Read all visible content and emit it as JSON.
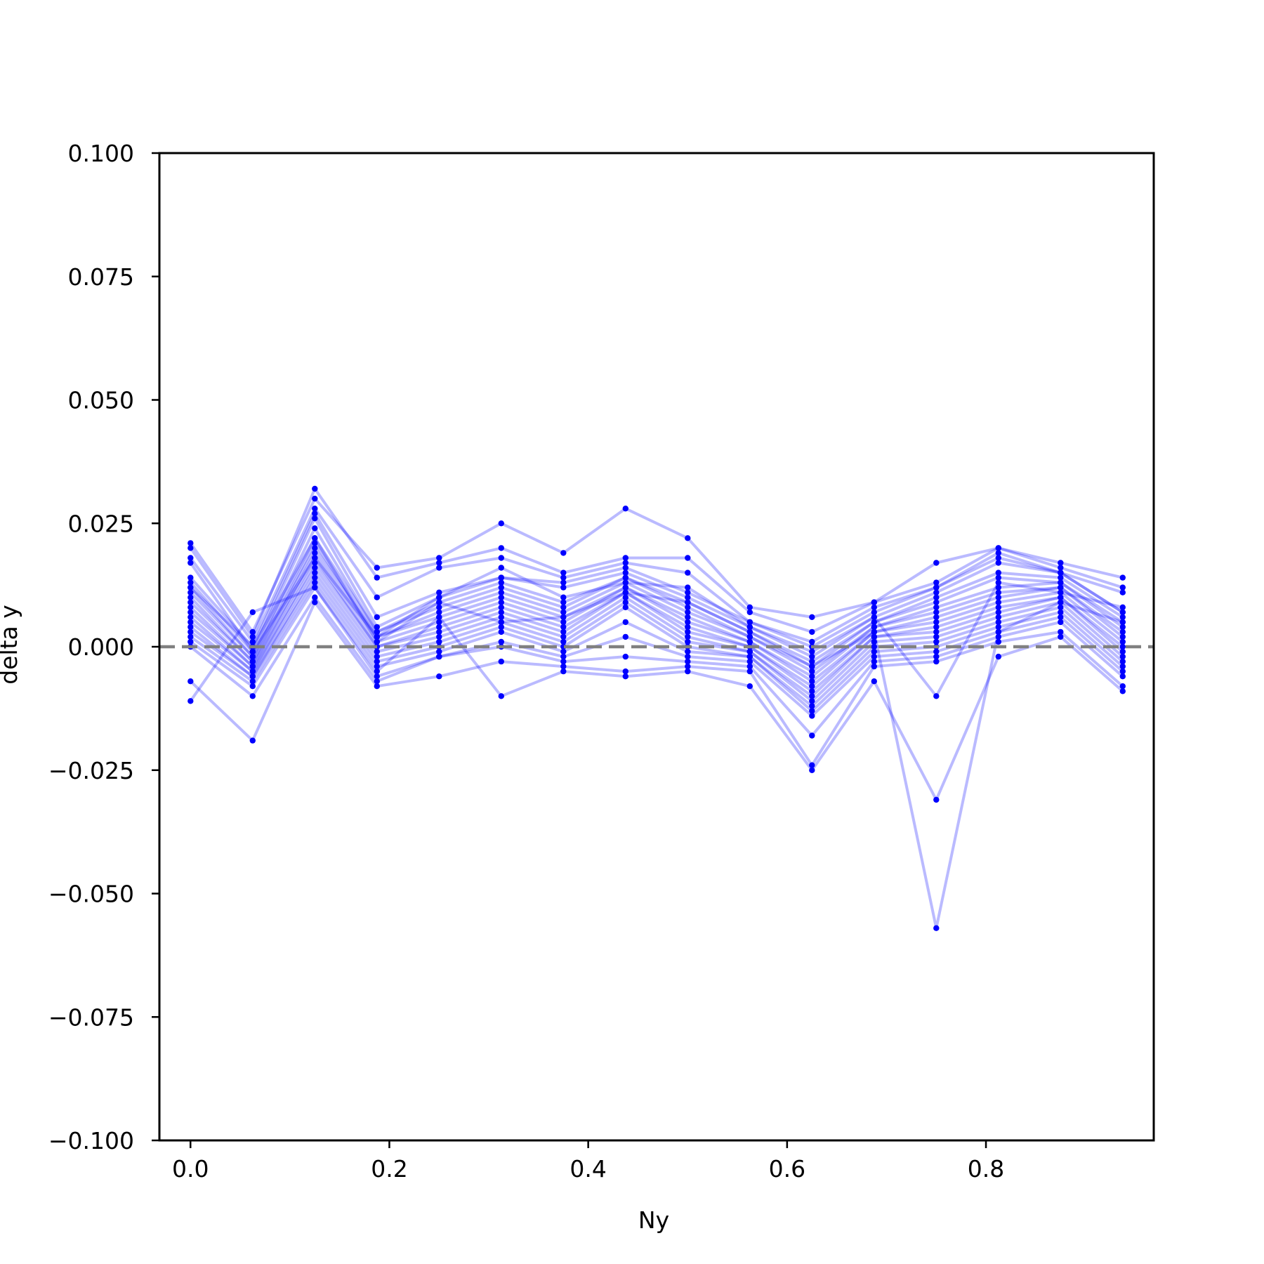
{
  "chart_data": {
    "type": "line",
    "title": "",
    "xlabel": "Ny",
    "ylabel": "delta y",
    "xlim": [
      -0.03125,
      0.96875
    ],
    "ylim": [
      -0.1,
      0.1
    ],
    "xticks": [
      0.0,
      0.2,
      0.4,
      0.6,
      0.8
    ],
    "xtick_labels": [
      "0.0",
      "0.2",
      "0.4",
      "0.6",
      "0.8"
    ],
    "yticks": [
      0.1,
      0.075,
      0.05,
      0.025,
      0.0,
      -0.025,
      -0.05,
      -0.075,
      -0.1
    ],
    "ytick_labels": [
      "0.100",
      "0.075",
      "0.050",
      "0.025",
      "0.000",
      "−0.025",
      "−0.050",
      "−0.075",
      "−0.100"
    ],
    "x": [
      0.0,
      0.0625,
      0.125,
      0.1875,
      0.25,
      0.3125,
      0.375,
      0.4375,
      0.5,
      0.5625,
      0.625,
      0.6875,
      0.75,
      0.8125,
      0.875,
      0.9375
    ],
    "reference_line": {
      "y": 0.0,
      "style": "dashed",
      "color": "#808080"
    },
    "grid": false,
    "legend": "none",
    "series_color": "#0000ff",
    "series": [
      {
        "values": [
          0.021,
          0.003,
          0.03,
          0.016,
          0.018,
          0.025,
          0.019,
          0.028,
          0.022,
          0.008,
          0.006,
          0.009,
          0.017,
          0.02,
          0.017,
          0.014
        ]
      },
      {
        "values": [
          0.02,
          0.002,
          0.032,
          0.014,
          0.017,
          0.02,
          0.015,
          0.018,
          0.018,
          0.007,
          0.003,
          0.009,
          0.013,
          0.02,
          0.016,
          0.012
        ]
      },
      {
        "values": [
          0.018,
          0.001,
          0.028,
          0.01,
          0.016,
          0.018,
          0.014,
          0.017,
          0.015,
          0.005,
          0.001,
          0.008,
          0.012,
          0.019,
          0.015,
          0.011
        ]
      },
      {
        "values": [
          0.014,
          0.0,
          0.027,
          0.006,
          0.011,
          0.014,
          0.013,
          0.016,
          0.011,
          0.005,
          0.0,
          0.007,
          0.012,
          0.018,
          0.015,
          0.007
        ]
      },
      {
        "values": [
          0.013,
          -0.001,
          0.026,
          0.004,
          0.01,
          0.014,
          0.012,
          0.015,
          0.01,
          0.004,
          -0.002,
          0.006,
          0.011,
          0.017,
          0.015,
          0.007
        ]
      },
      {
        "values": [
          0.012,
          -0.002,
          0.024,
          0.003,
          0.009,
          0.013,
          0.009,
          0.014,
          0.009,
          0.003,
          -0.003,
          0.005,
          0.01,
          0.015,
          0.014,
          0.006
        ]
      },
      {
        "values": [
          0.011,
          -0.002,
          0.022,
          0.003,
          0.008,
          0.012,
          0.008,
          0.014,
          0.008,
          0.002,
          -0.004,
          0.005,
          0.009,
          0.014,
          0.013,
          0.005
        ]
      },
      {
        "values": [
          0.01,
          -0.003,
          0.021,
          0.002,
          0.007,
          0.011,
          0.007,
          0.013,
          0.007,
          0.002,
          -0.005,
          0.004,
          0.008,
          0.012,
          0.013,
          0.004
        ]
      },
      {
        "values": [
          0.009,
          -0.003,
          0.02,
          0.002,
          0.006,
          0.01,
          0.006,
          0.012,
          0.006,
          0.001,
          -0.006,
          0.004,
          0.007,
          0.011,
          0.012,
          0.003
        ]
      },
      {
        "values": [
          0.008,
          -0.004,
          0.019,
          0.001,
          0.005,
          0.009,
          0.005,
          0.012,
          0.005,
          0.001,
          -0.007,
          0.003,
          0.006,
          0.01,
          0.012,
          0.002
        ]
      },
      {
        "values": [
          0.007,
          -0.004,
          0.018,
          0.0,
          0.004,
          0.008,
          0.004,
          0.011,
          0.004,
          0.0,
          -0.008,
          0.003,
          0.005,
          0.009,
          0.011,
          0.001
        ]
      },
      {
        "values": [
          0.006,
          -0.005,
          0.017,
          0.0,
          0.003,
          0.007,
          0.003,
          0.011,
          0.003,
          0.0,
          -0.009,
          0.002,
          0.004,
          0.008,
          0.01,
          0.0
        ]
      },
      {
        "values": [
          0.005,
          -0.005,
          0.016,
          -0.001,
          0.002,
          0.006,
          0.002,
          0.01,
          0.002,
          -0.001,
          -0.01,
          0.002,
          0.003,
          0.007,
          0.01,
          -0.001
        ]
      },
      {
        "values": [
          0.004,
          -0.006,
          0.015,
          -0.002,
          0.001,
          0.005,
          0.001,
          0.009,
          0.001,
          -0.001,
          -0.011,
          0.001,
          0.002,
          0.006,
          0.009,
          -0.002
        ]
      },
      {
        "values": [
          0.003,
          -0.006,
          0.014,
          -0.003,
          0.0,
          0.004,
          0.0,
          0.008,
          0.0,
          -0.002,
          -0.012,
          0.0,
          0.001,
          0.005,
          0.008,
          -0.003
        ]
      },
      {
        "values": [
          0.002,
          -0.007,
          0.013,
          -0.004,
          -0.001,
          0.003,
          -0.001,
          0.005,
          -0.001,
          -0.002,
          -0.013,
          -0.001,
          0.0,
          0.004,
          0.007,
          -0.004
        ]
      },
      {
        "values": [
          0.001,
          -0.008,
          0.012,
          -0.006,
          -0.002,
          0.001,
          -0.002,
          0.002,
          -0.002,
          -0.003,
          -0.014,
          -0.002,
          -0.001,
          0.003,
          0.006,
          -0.005
        ]
      },
      {
        "values": [
          0.0,
          -0.01,
          0.01,
          -0.007,
          -0.002,
          0.0,
          -0.003,
          -0.002,
          -0.003,
          -0.004,
          -0.018,
          -0.003,
          -0.002,
          0.002,
          0.005,
          -0.006
        ]
      },
      {
        "values": [
          -0.007,
          -0.019,
          0.009,
          -0.008,
          -0.006,
          -0.003,
          -0.004,
          -0.005,
          -0.004,
          -0.005,
          -0.024,
          -0.004,
          -0.003,
          0.001,
          0.003,
          -0.008
        ]
      },
      {
        "values": [
          -0.011,
          0.007,
          0.012,
          -0.005,
          0.006,
          -0.01,
          -0.005,
          -0.006,
          -0.005,
          -0.008,
          -0.025,
          -0.007,
          -0.031,
          -0.002,
          0.002,
          -0.009
        ]
      },
      {
        "values": [
          0.017,
          -0.001,
          0.018,
          0.002,
          0.01,
          0.016,
          0.01,
          0.013,
          0.012,
          0.004,
          -0.001,
          0.006,
          -0.01,
          0.013,
          0.011,
          0.008
        ]
      },
      {
        "values": [
          0.012,
          0.0,
          0.022,
          0.001,
          0.009,
          0.005,
          0.006,
          0.011,
          0.009,
          0.003,
          -0.004,
          0.003,
          -0.057,
          0.003,
          0.009,
          0.005
        ]
      }
    ]
  }
}
